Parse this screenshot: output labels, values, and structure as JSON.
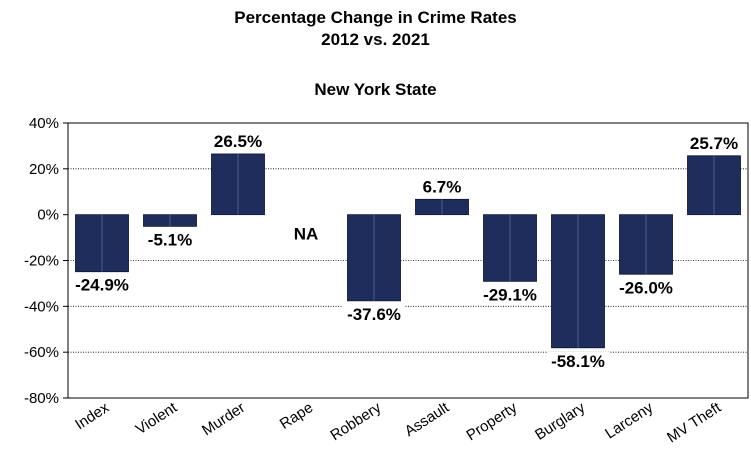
{
  "chart_data": {
    "type": "bar",
    "title_line1": "Percentage Change in Crime Rates",
    "title_line2": "2012 vs. 2021",
    "subtitle": "New York State",
    "categories": [
      "Index",
      "Violent",
      "Murder",
      "Rape",
      "Robbery",
      "Assault",
      "Property",
      "Burglary",
      "Larceny",
      "MV Theft"
    ],
    "values": [
      -24.9,
      -5.1,
      26.5,
      null,
      -37.6,
      6.7,
      -29.1,
      -58.1,
      -26.0,
      25.7
    ],
    "data_labels": [
      "-24.9%",
      "-5.1%",
      "26.5%",
      "NA",
      "-37.6%",
      "6.7%",
      "-29.1%",
      "-58.1%",
      "-26.0%",
      "25.7%"
    ],
    "y_ticks": [
      40,
      20,
      0,
      -20,
      -40,
      -60,
      -80
    ],
    "y_tick_labels": [
      "40%",
      "20%",
      "0%",
      "-20%",
      "-40%",
      "-60%",
      "-80%"
    ],
    "ylim": [
      -80,
      40
    ],
    "grid": "horizontal dotted",
    "bar_color": "#1f2d5c"
  }
}
